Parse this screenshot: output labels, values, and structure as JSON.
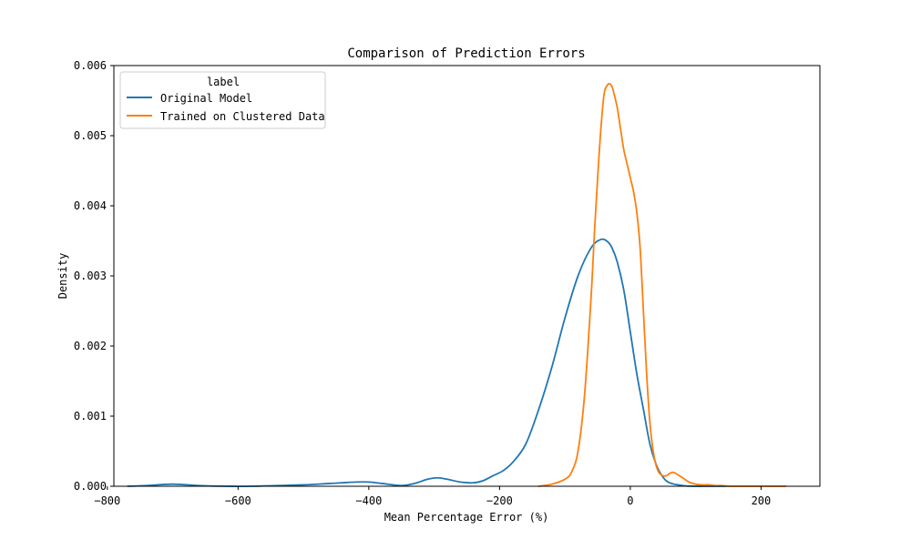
{
  "chart_data": {
    "type": "line",
    "title": "Comparison of Prediction Errors",
    "xlabel": "Mean Percentage Error (%)",
    "ylabel": "Density",
    "xlim": [
      -790,
      290
    ],
    "ylim": [
      0,
      0.006
    ],
    "xticks": [
      -800,
      -600,
      -400,
      -200,
      0,
      200
    ],
    "xtick_labels": [
      "−800",
      "−600",
      "−400",
      "−200",
      "0",
      "200"
    ],
    "yticks": [
      0,
      0.001,
      0.002,
      0.003,
      0.004,
      0.005,
      0.006
    ],
    "ytick_labels": [
      "0.000",
      "0.001",
      "0.002",
      "0.003",
      "0.004",
      "0.005",
      "0.006"
    ],
    "grid": false,
    "legend": {
      "title": "label",
      "placement": "top-left"
    },
    "series": [
      {
        "name": "Original Model",
        "color": "#1f77b4",
        "x": [
          -769,
          -740,
          -700,
          -660,
          -620,
          -580,
          -540,
          -500,
          -460,
          -420,
          -400,
          -380,
          -350,
          -330,
          -310,
          -295,
          -280,
          -260,
          -240,
          -225,
          -210,
          -195,
          -180,
          -160,
          -140,
          -120,
          -100,
          -80,
          -60,
          -45,
          -35,
          -28,
          -20,
          -10,
          0,
          10,
          20,
          30,
          40,
          50,
          60,
          80,
          100,
          120,
          146
        ],
        "y": [
          0.0,
          1e-05,
          3e-05,
          1e-05,
          0.0,
          0.0,
          1e-05,
          2e-05,
          4e-05,
          6e-05,
          6e-05,
          4e-05,
          1e-05,
          4e-05,
          0.0001,
          0.00012,
          0.0001,
          6e-05,
          5e-05,
          8e-05,
          0.00015,
          0.00022,
          0.00034,
          0.0006,
          0.0011,
          0.0017,
          0.0024,
          0.003,
          0.0034,
          0.00352,
          0.00349,
          0.0034,
          0.0032,
          0.0028,
          0.0022,
          0.0016,
          0.0011,
          0.0006,
          0.0003,
          0.00013,
          5e-05,
          1e-05,
          0.0,
          0.0,
          0.0
        ]
      },
      {
        "name": "Trained on Clustered Data",
        "color": "#ff7f0e",
        "x": [
          -140,
          -120,
          -100,
          -90,
          -80,
          -70,
          -60,
          -55,
          -50,
          -45,
          -40,
          -35,
          -32,
          -28,
          -25,
          -20,
          -15,
          -10,
          -5,
          0,
          5,
          10,
          15,
          20,
          25,
          30,
          35,
          40,
          45,
          50,
          55,
          60,
          65,
          70,
          80,
          90,
          100,
          110,
          120,
          130,
          140,
          150,
          160,
          170,
          180,
          190,
          200,
          220,
          238
        ],
        "y": [
          0.0,
          3e-05,
          0.0001,
          0.0002,
          0.0005,
          0.0013,
          0.0027,
          0.0036,
          0.0044,
          0.0051,
          0.0056,
          0.00572,
          0.00574,
          0.0057,
          0.0056,
          0.0054,
          0.0051,
          0.0048,
          0.0046,
          0.0044,
          0.0042,
          0.0039,
          0.0034,
          0.0025,
          0.0016,
          0.0009,
          0.0005,
          0.00028,
          0.00018,
          0.00015,
          0.00015,
          0.00018,
          0.0002,
          0.00018,
          0.00012,
          6e-05,
          3e-05,
          2e-05,
          2e-05,
          1e-05,
          1e-05,
          0.0,
          0.0,
          0.0,
          0.0,
          0.0,
          0.0,
          0.0,
          0.0
        ]
      }
    ]
  }
}
